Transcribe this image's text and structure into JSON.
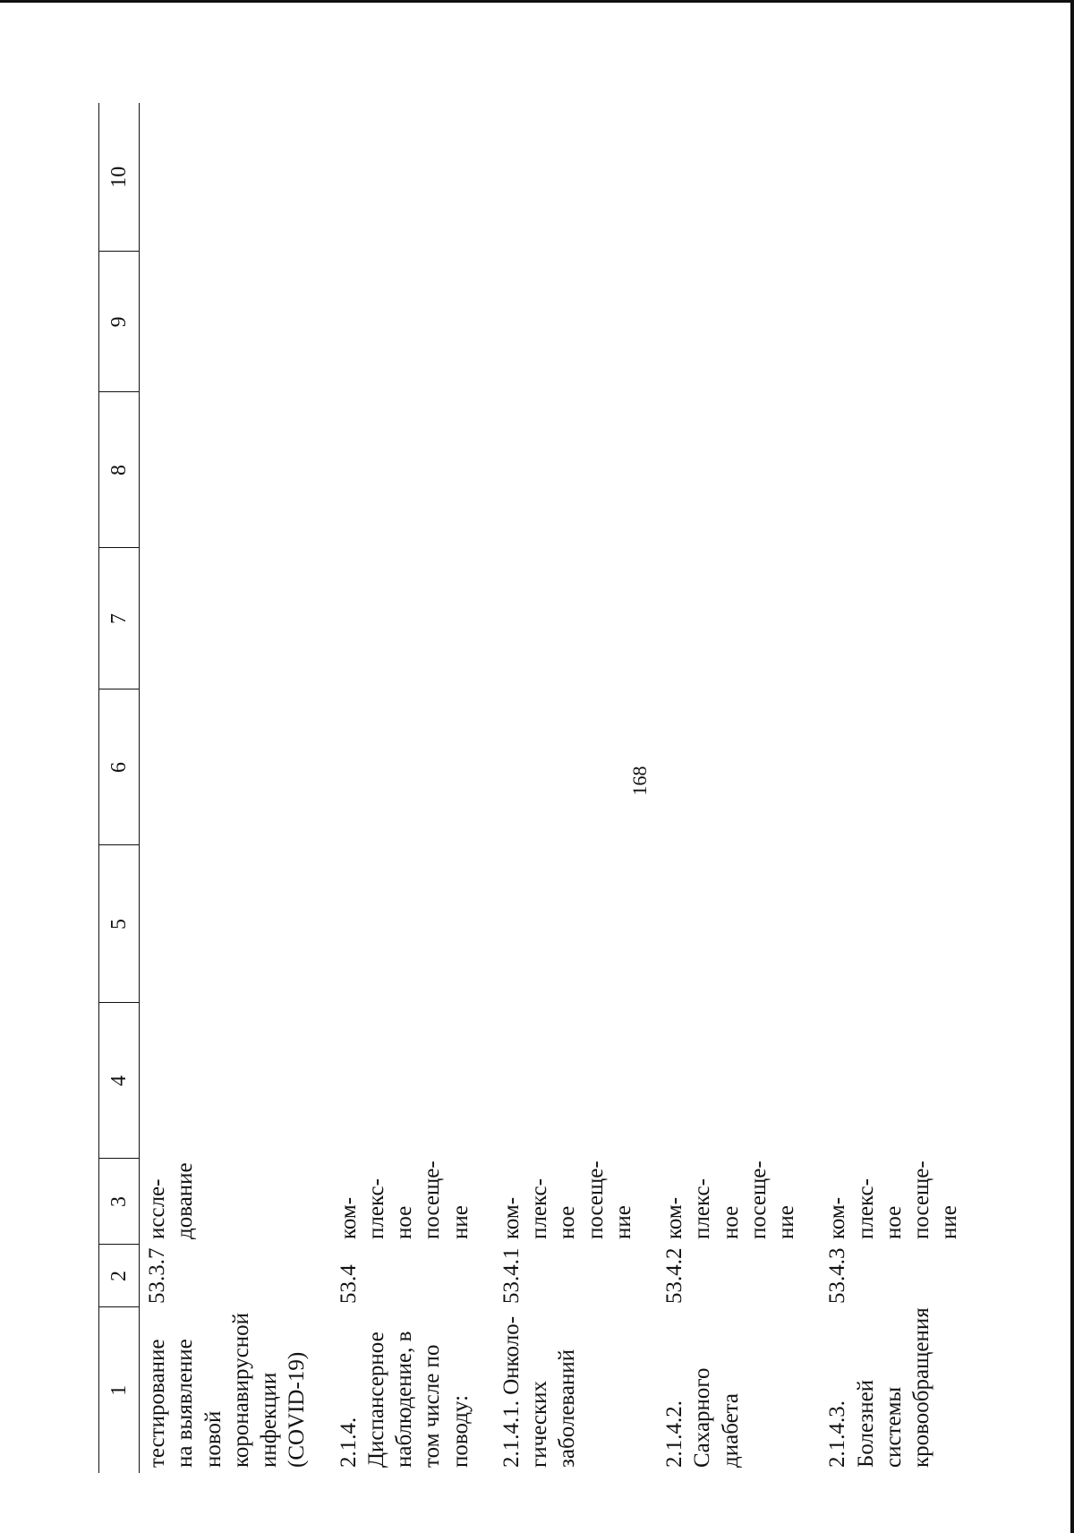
{
  "page": {
    "number": "168"
  },
  "table": {
    "headers": [
      "1",
      "2",
      "3",
      "4",
      "5",
      "6",
      "7",
      "8",
      "9",
      "10"
    ],
    "rows": [
      {
        "name": "тестирование на выявление новой коронавирусной инфекции (COVID-19)",
        "code": "53.3.7",
        "unit": "иссле-\nдование"
      },
      {
        "name": "2.1.4. Диспансерное наблюдение, в том числе по поводу:",
        "code": "53.4",
        "unit": "ком-\nплекс-\nное\nпосеще-\nние"
      },
      {
        "name": "2.1.4.1. Онколо-\nгических\nзаболеваний",
        "code": "53.4.1",
        "unit": "ком-\nплекс-\nное\nпосеще-\nние"
      },
      {
        "name": "2.1.4.2. Сахарного диабета",
        "code": "53.4.2",
        "unit": "ком-\nплекс-\nное\nпосеще-\nние"
      },
      {
        "name": "2.1.4.3. Болезней\nсистемы\nкровообращения",
        "code": "53.4.3",
        "unit": "ком-\nплекс-\nное\nпосеще-\nние"
      }
    ]
  }
}
